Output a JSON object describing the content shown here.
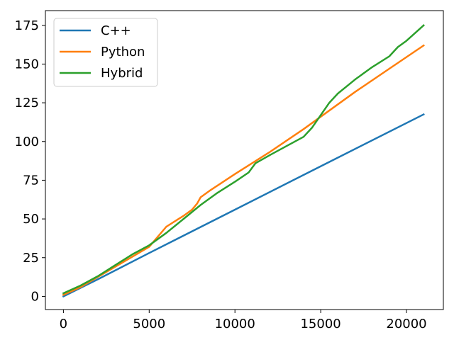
{
  "chart_data": {
    "type": "line",
    "title": "",
    "xlabel": "",
    "ylabel": "",
    "xlim": [
      -1050,
      22150
    ],
    "ylim": [
      -8.5,
      184.5
    ],
    "x_ticks": [
      0,
      5000,
      10000,
      15000,
      20000
    ],
    "x_tick_labels": [
      "0",
      "5000",
      "10000",
      "15000",
      "20000"
    ],
    "y_ticks": [
      0,
      25,
      50,
      75,
      100,
      125,
      150,
      175
    ],
    "y_tick_labels": [
      "0",
      "25",
      "50",
      "75",
      "100",
      "125",
      "150",
      "175"
    ],
    "grid": false,
    "legend_position": "top-left",
    "series": [
      {
        "name": "C++",
        "color": "#1f77b4",
        "x": [
          0,
          2000,
          5000,
          10000,
          15000,
          21000
        ],
        "y": [
          0,
          11,
          28,
          56,
          84,
          117.5
        ]
      },
      {
        "name": "Python",
        "color": "#ff7f0e",
        "x": [
          0,
          1000,
          2000,
          3000,
          4000,
          5000,
          6000,
          7000,
          7500,
          7800,
          8000,
          8500,
          10000,
          12000,
          14000,
          15000,
          17000,
          19000,
          21000
        ],
        "y": [
          1,
          6,
          12.5,
          19,
          25.5,
          32,
          45,
          52,
          56,
          60,
          64,
          68,
          79,
          93,
          108,
          116,
          132,
          147,
          162
        ]
      },
      {
        "name": "Hybrid",
        "color": "#2ca02c",
        "x": [
          0,
          1000,
          2000,
          3000,
          4000,
          5000,
          6000,
          7000,
          8000,
          9000,
          10000,
          10800,
          11200,
          12000,
          13000,
          14000,
          14500,
          15000,
          15500,
          16000,
          17000,
          18000,
          19000,
          19500,
          20000,
          21000
        ],
        "y": [
          2,
          7,
          13,
          20,
          27,
          33,
          41,
          50,
          59,
          67,
          74,
          80,
          86,
          91,
          97,
          103,
          109,
          117,
          125,
          131,
          140,
          148,
          155,
          161,
          165,
          175
        ]
      }
    ]
  }
}
